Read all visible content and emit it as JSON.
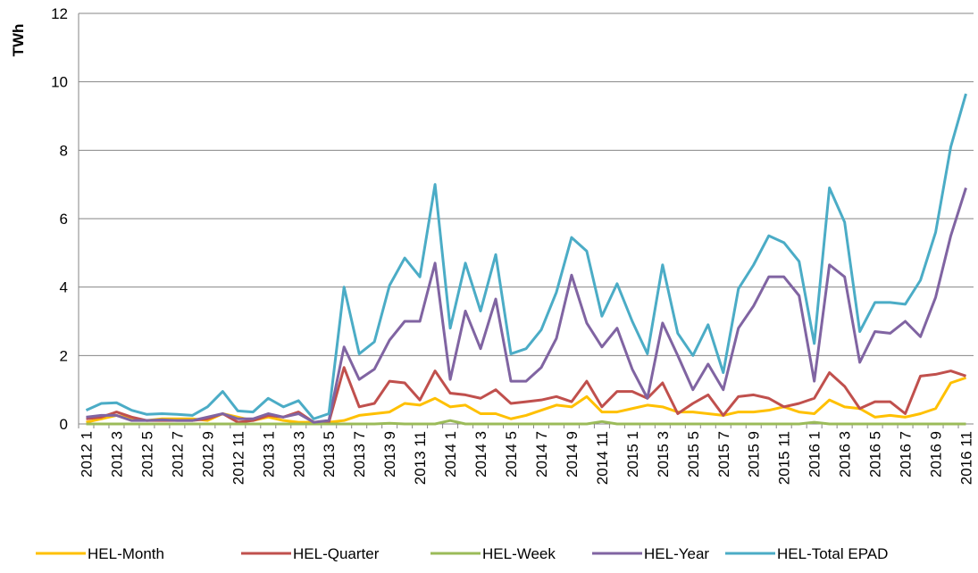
{
  "chart_data": {
    "type": "line",
    "y_label": "TWh",
    "legend": "bottom",
    "grid": true,
    "ylim": [
      0,
      12
    ],
    "yticks": [
      0,
      2,
      4,
      6,
      8,
      10,
      12
    ],
    "categories": [
      "2012 1",
      null,
      "2012 3",
      null,
      "2012 5",
      null,
      "2012 7",
      null,
      "2012 9",
      null,
      "2012 11",
      null,
      "2013 1",
      null,
      "2013 3",
      null,
      "2013 5",
      null,
      "2013 7",
      null,
      "2013 9",
      null,
      "2013 11",
      null,
      "2014 1",
      null,
      "2014 3",
      null,
      "2014 5",
      null,
      "2014 7",
      null,
      "2014 9",
      null,
      "2014 11",
      null,
      "2015 1",
      null,
      "2015 3",
      null,
      "2015 5",
      null,
      "2015 7",
      null,
      "2015 9",
      null,
      "2015 11",
      null,
      "2016 1",
      null,
      "2016 3",
      null,
      "2016 5",
      null,
      "2016 7",
      null,
      "2016 9",
      null,
      "2016 11"
    ],
    "series": [
      {
        "name": "HEL-Month",
        "color": "#FFC000",
        "values": [
          0.05,
          0.15,
          0.25,
          0.15,
          0.1,
          0.15,
          0.15,
          0.15,
          0.1,
          0.3,
          0.2,
          0.1,
          0.2,
          0.1,
          0.05,
          0.05,
          0.05,
          0.1,
          0.25,
          0.3,
          0.35,
          0.6,
          0.55,
          0.75,
          0.5,
          0.55,
          0.3,
          0.3,
          0.15,
          0.25,
          0.4,
          0.55,
          0.5,
          0.8,
          0.35,
          0.35,
          0.45,
          0.55,
          0.5,
          0.35,
          0.35,
          0.3,
          0.25,
          0.35,
          0.35,
          0.4,
          0.5,
          0.35,
          0.3,
          0.7,
          0.5,
          0.45,
          0.2,
          0.25,
          0.2,
          0.3,
          0.45,
          1.2,
          1.35
        ]
      },
      {
        "name": "HEL-Quarter",
        "color": "#C0504D",
        "values": [
          0.15,
          0.2,
          0.35,
          0.2,
          0.1,
          0.1,
          0.1,
          0.1,
          0.15,
          0.3,
          0.05,
          0.1,
          0.25,
          0.2,
          0.35,
          0.05,
          0.05,
          1.65,
          0.5,
          0.6,
          1.25,
          1.2,
          0.7,
          1.55,
          0.9,
          0.85,
          0.75,
          1.0,
          0.6,
          0.65,
          0.7,
          0.8,
          0.65,
          1.25,
          0.5,
          0.95,
          0.95,
          0.75,
          1.2,
          0.3,
          0.6,
          0.85,
          0.25,
          0.8,
          0.85,
          0.75,
          0.5,
          0.6,
          0.75,
          1.5,
          1.1,
          0.45,
          0.65,
          0.65,
          0.3,
          1.4,
          1.45,
          1.55,
          1.4
        ]
      },
      {
        "name": "HEL-Week",
        "color": "#9BBB59",
        "values": [
          0,
          0,
          0,
          0,
          0,
          0,
          0,
          0,
          0,
          0,
          0,
          0,
          0,
          0,
          0,
          0,
          0,
          0,
          0,
          0,
          0.02,
          0,
          0,
          0,
          0.1,
          0,
          0,
          0,
          0,
          0,
          0,
          0,
          0,
          0,
          0.07,
          0,
          0,
          0,
          0,
          0,
          0,
          0,
          0,
          0,
          0,
          0,
          0,
          0,
          0.05,
          0,
          0,
          0,
          0,
          0,
          0,
          0,
          0,
          0,
          0
        ]
      },
      {
        "name": "HEL-Year",
        "color": "#8064A2",
        "values": [
          0.2,
          0.25,
          0.25,
          0.1,
          0.1,
          0.12,
          0.1,
          0.1,
          0.2,
          0.3,
          0.15,
          0.15,
          0.3,
          0.2,
          0.3,
          0.05,
          0.1,
          2.25,
          1.3,
          1.6,
          2.45,
          3.0,
          3.0,
          4.7,
          1.3,
          3.3,
          2.2,
          3.65,
          1.25,
          1.25,
          1.65,
          2.5,
          4.35,
          2.95,
          2.25,
          2.8,
          1.6,
          0.75,
          2.95,
          2.0,
          1.0,
          1.75,
          1.0,
          2.8,
          3.45,
          4.3,
          4.3,
          3.75,
          1.25,
          4.65,
          4.3,
          1.8,
          2.7,
          2.65,
          3.0,
          2.55,
          3.7,
          5.5,
          6.9
        ]
      },
      {
        "name": "HEL-Total EPAD",
        "color": "#4BACC6",
        "values": [
          0.4,
          0.6,
          0.62,
          0.4,
          0.28,
          0.3,
          0.28,
          0.25,
          0.5,
          0.95,
          0.38,
          0.35,
          0.75,
          0.5,
          0.68,
          0.15,
          0.3,
          4.0,
          2.05,
          2.4,
          4.05,
          4.85,
          4.3,
          7.0,
          2.8,
          4.7,
          3.3,
          4.95,
          2.05,
          2.2,
          2.75,
          3.85,
          5.45,
          5.05,
          3.15,
          4.1,
          3.0,
          2.05,
          4.65,
          2.65,
          2.0,
          2.9,
          1.5,
          3.95,
          4.65,
          5.5,
          5.3,
          4.75,
          2.35,
          6.9,
          5.9,
          2.7,
          3.55,
          3.55,
          3.5,
          4.2,
          5.6,
          8.1,
          9.65
        ]
      }
    ]
  }
}
